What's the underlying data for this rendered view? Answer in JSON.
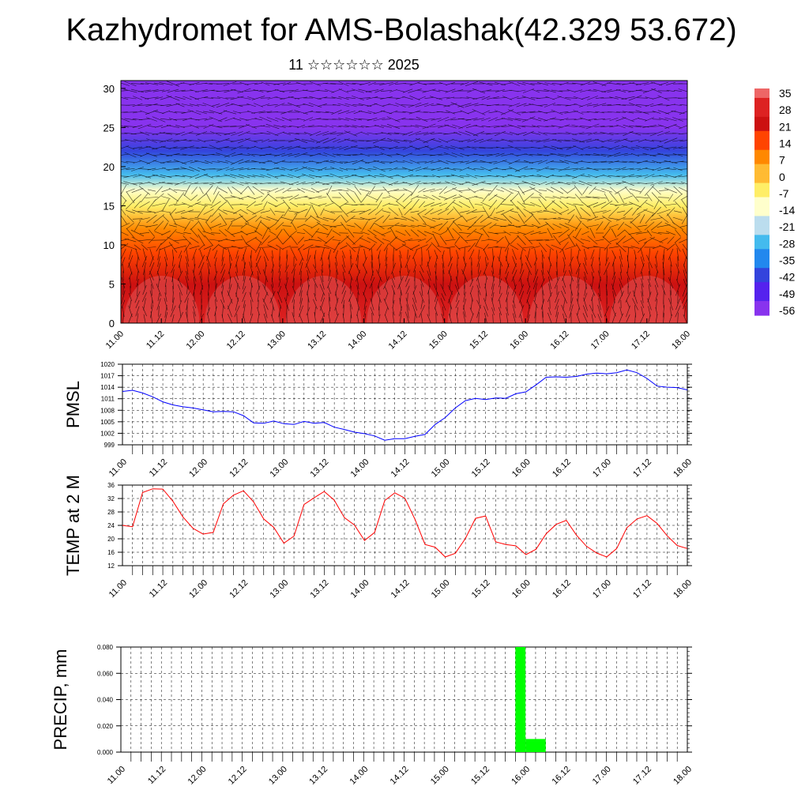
{
  "page": {
    "title": "Kazhydromet for AMS-Bolashak(42.329 53.672)",
    "subtitle": "11 ☆☆☆☆☆☆ 2025"
  },
  "colors": {
    "pmsl_line": "#0000ff",
    "temp_line": "#ff0000",
    "precip_bar": "#00ff00",
    "contour_lines": "#000000"
  },
  "chart_data": [
    {
      "id": "cross_section",
      "type": "heatmap",
      "title": "",
      "xlabel": "",
      "ylabel": "",
      "x_tick_labels": [
        "11.00",
        "11.12",
        "12.00",
        "12.12",
        "13.00",
        "13.12",
        "14.00",
        "14.12",
        "15.00",
        "15.12",
        "16.00",
        "16.12",
        "17.00",
        "17.12",
        "18.00"
      ],
      "y_ticks": [
        0,
        5,
        10,
        15,
        20,
        25,
        30
      ],
      "ylim": [
        0,
        31
      ],
      "colorbar": {
        "labels": [
          "35",
          "28",
          "21",
          "14",
          "7",
          "0",
          "-7",
          "-14",
          "-21",
          "-28",
          "-35",
          "-42",
          "-49",
          "-56"
        ],
        "colors": [
          "#ee6666",
          "#dd2222",
          "#cc1111",
          "#ff4400",
          "#ff8800",
          "#ffbb33",
          "#ffee66",
          "#ffffcc",
          "#bbddee",
          "#44bbee",
          "#2288ee",
          "#3344dd",
          "#5522ee",
          "#8833ee"
        ]
      },
      "level_profile": [
        {
          "level": 0,
          "value": 30
        },
        {
          "level": 5,
          "value": 24
        },
        {
          "level": 9,
          "value": 14
        },
        {
          "level": 12,
          "value": 5
        },
        {
          "level": 15,
          "value": -7
        },
        {
          "level": 17,
          "value": -15
        },
        {
          "level": 19,
          "value": -25
        },
        {
          "level": 22,
          "value": -42
        },
        {
          "level": 25,
          "value": -56
        },
        {
          "level": 31,
          "value": -60
        }
      ],
      "grid": true
    },
    {
      "id": "pmsl",
      "type": "line",
      "ylabel": "PMSL",
      "y_ticks": [
        999,
        1002,
        1005,
        1008,
        1011,
        1014,
        1017,
        1020
      ],
      "ylim": [
        999,
        1020
      ],
      "x_tick_labels": [
        "11.00",
        "11.12",
        "12.00",
        "12.12",
        "13.00",
        "13.12",
        "14.00",
        "14.12",
        "15.00",
        "15.12",
        "16.00",
        "16.12",
        "17.00",
        "17.12",
        "18.00"
      ],
      "x": [
        0,
        3,
        6,
        9,
        12,
        15,
        18,
        21,
        24,
        27,
        30,
        33,
        36,
        39,
        42,
        45,
        48,
        51,
        54,
        57,
        60,
        63,
        66,
        69,
        72,
        75,
        78,
        81,
        84,
        87,
        90,
        93,
        96,
        99,
        102,
        105,
        108,
        111,
        114,
        117,
        120,
        123,
        126,
        129,
        132,
        135,
        138,
        141,
        144,
        147,
        150,
        153,
        156,
        159,
        162,
        165,
        168
      ],
      "series": [
        {
          "values": [
            1012.9,
            1013.2,
            1012.5,
            1011.5,
            1010.2,
            1009.4,
            1008.9,
            1008.6,
            1008.1,
            1007.6,
            1007.7,
            1007.6,
            1006.6,
            1004.7,
            1004.6,
            1005.2,
            1004.5,
            1004.3,
            1005.1,
            1004.6,
            1004.8,
            1003.6,
            1003.0,
            1002.3,
            1001.9,
            1001.3,
            1000.2,
            1000.6,
            1000.6,
            1001.2,
            1001.7,
            1004.3,
            1006.1,
            1008.6,
            1010.5,
            1011.1,
            1010.8,
            1011.2,
            1011.1,
            1012.3,
            1012.8,
            1014.6,
            1016.6,
            1016.7,
            1016.6,
            1016.8,
            1017.4,
            1017.7,
            1017.5,
            1017.8,
            1018.5,
            1017.8,
            1016.3,
            1014.3,
            1014.0,
            1013.9,
            1013.3
          ]
        }
      ],
      "grid": true
    },
    {
      "id": "temp2m",
      "type": "line",
      "ylabel": "TEMP at 2 M",
      "y_ticks": [
        12,
        16,
        20,
        24,
        28,
        32,
        36
      ],
      "ylim": [
        12,
        36
      ],
      "x_tick_labels": [
        "11.00",
        "11.12",
        "12.00",
        "12.12",
        "13.00",
        "13.12",
        "14.00",
        "14.12",
        "15.00",
        "15.12",
        "16.00",
        "16.12",
        "17.00",
        "17.12",
        "18.00"
      ],
      "x": [
        0,
        3,
        6,
        9,
        12,
        15,
        18,
        21,
        24,
        27,
        30,
        33,
        36,
        39,
        42,
        45,
        48,
        51,
        54,
        57,
        60,
        63,
        66,
        69,
        72,
        75,
        78,
        81,
        84,
        87,
        90,
        93,
        96,
        99,
        102,
        105,
        108,
        111,
        114,
        117,
        120,
        123,
        126,
        129,
        132,
        135,
        138,
        141,
        144,
        147,
        150,
        153,
        156,
        159,
        162,
        165,
        168
      ],
      "series": [
        {
          "values": [
            24.0,
            23.6,
            33.8,
            34.9,
            34.8,
            31.2,
            26.5,
            23.1,
            21.4,
            21.9,
            30.4,
            33.0,
            34.3,
            31.0,
            25.9,
            23.4,
            18.7,
            20.8,
            30.2,
            32.2,
            34.1,
            31.5,
            26.3,
            24.1,
            19.5,
            21.9,
            31.4,
            33.7,
            32.1,
            25.8,
            18.3,
            17.5,
            14.6,
            15.7,
            20.1,
            26.1,
            26.8,
            19.1,
            18.3,
            17.9,
            15.3,
            16.9,
            21.5,
            24.3,
            25.5,
            21.1,
            17.8,
            15.8,
            14.6,
            17.1,
            23.3,
            25.9,
            26.9,
            24.6,
            20.9,
            18.0,
            17.1
          ]
        }
      ],
      "grid": true
    },
    {
      "id": "precip",
      "type": "bar",
      "ylabel": "PRECIP, mm",
      "y_ticks": [
        0.0,
        0.02,
        0.04,
        0.06,
        0.08
      ],
      "y_tick_labels": [
        "0.000",
        "0.020",
        "0.040",
        "0.060",
        "0.080"
      ],
      "ylim": [
        0,
        0.08
      ],
      "x_tick_labels": [
        "11.00",
        "11.12",
        "12.00",
        "12.12",
        "13.00",
        "13.12",
        "14.00",
        "14.12",
        "15.00",
        "15.12",
        "16.00",
        "16.12",
        "17.00",
        "17.12",
        "18.00"
      ],
      "bars": [
        {
          "x_start": 117,
          "x_end": 120,
          "value": 0.08
        },
        {
          "x_start": 120,
          "x_end": 126,
          "value": 0.01
        }
      ],
      "grid": true
    }
  ]
}
